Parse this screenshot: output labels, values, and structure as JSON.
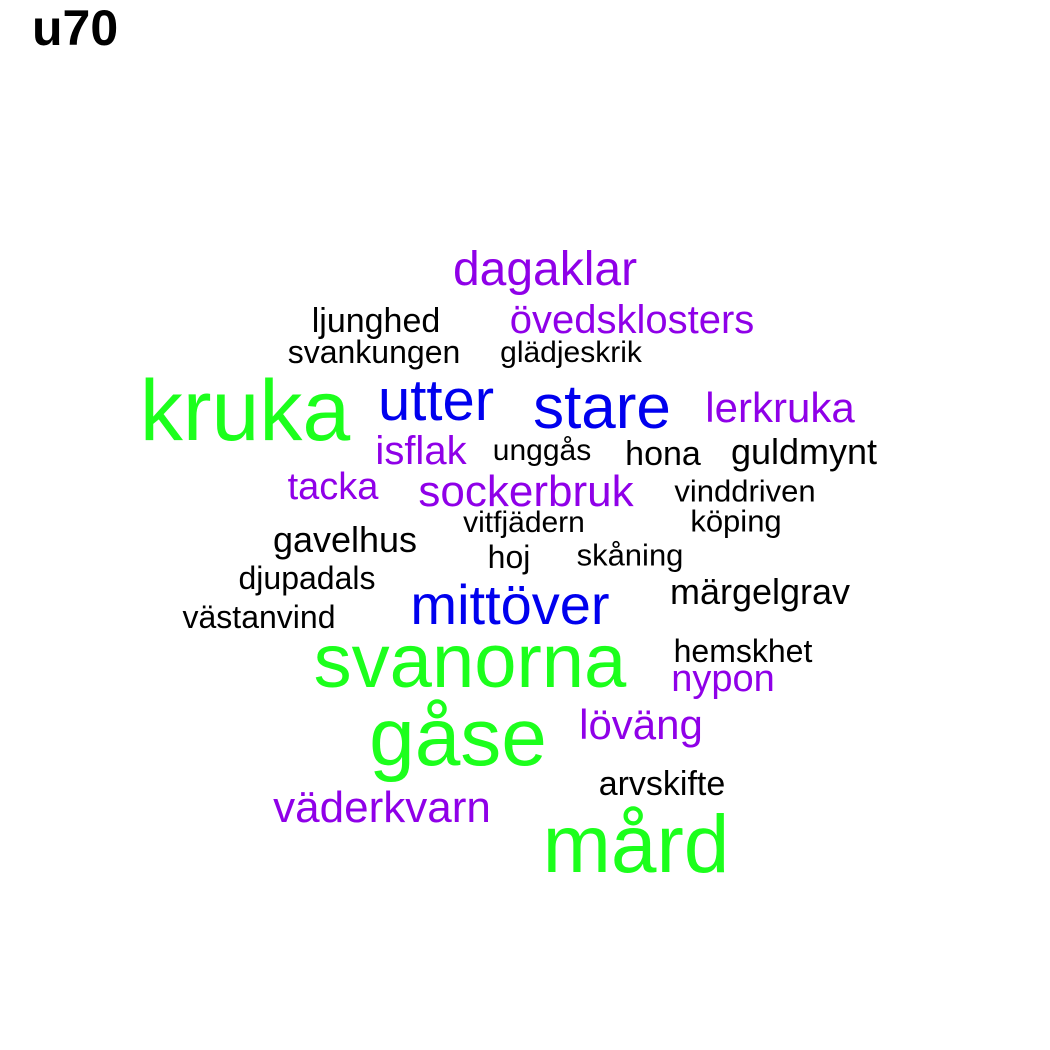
{
  "title": "u70",
  "palette": {
    "green": "#1CFF1C",
    "blue": "#0000EE",
    "purple": "#8F00E8",
    "black": "#000000"
  },
  "words": [
    {
      "text": "kruka",
      "color": "green",
      "size": 86
    },
    {
      "text": "svanorna",
      "color": "green",
      "size": 76
    },
    {
      "text": "gåse",
      "color": "green",
      "size": 82
    },
    {
      "text": "mård",
      "color": "green",
      "size": 82
    },
    {
      "text": "utter",
      "color": "blue",
      "size": 58
    },
    {
      "text": "stare",
      "color": "blue",
      "size": 62
    },
    {
      "text": "mittöver",
      "color": "blue",
      "size": 56
    },
    {
      "text": "dagaklar",
      "color": "purple",
      "size": 48
    },
    {
      "text": "övedsklosters",
      "color": "purple",
      "size": 40
    },
    {
      "text": "lerkruka",
      "color": "purple",
      "size": 42
    },
    {
      "text": "isflak",
      "color": "purple",
      "size": 40
    },
    {
      "text": "tacka",
      "color": "purple",
      "size": 38
    },
    {
      "text": "sockerbruk",
      "color": "purple",
      "size": 44
    },
    {
      "text": "nypon",
      "color": "purple",
      "size": 38
    },
    {
      "text": "löväng",
      "color": "purple",
      "size": 42
    },
    {
      "text": "väderkvarn",
      "color": "purple",
      "size": 44
    },
    {
      "text": "ljunghed",
      "color": "black",
      "size": 34
    },
    {
      "text": "svankungen",
      "color": "black",
      "size": 32
    },
    {
      "text": "glädjeskrik",
      "color": "black",
      "size": 30
    },
    {
      "text": "unggås",
      "color": "black",
      "size": 30
    },
    {
      "text": "hona",
      "color": "black",
      "size": 34
    },
    {
      "text": "guldmynt",
      "color": "black",
      "size": 36
    },
    {
      "text": "vinddriven",
      "color": "black",
      "size": 31
    },
    {
      "text": "köping",
      "color": "black",
      "size": 31
    },
    {
      "text": "vitfjädern",
      "color": "black",
      "size": 30
    },
    {
      "text": "gavelhus",
      "color": "black",
      "size": 36
    },
    {
      "text": "hoj",
      "color": "black",
      "size": 32
    },
    {
      "text": "skåning",
      "color": "black",
      "size": 31
    },
    {
      "text": "djupadals",
      "color": "black",
      "size": 32
    },
    {
      "text": "märgelgrav",
      "color": "black",
      "size": 36
    },
    {
      "text": "västanvind",
      "color": "black",
      "size": 32
    },
    {
      "text": "hemskhet",
      "color": "black",
      "size": 32
    },
    {
      "text": "arvskifte",
      "color": "black",
      "size": 34
    }
  ]
}
